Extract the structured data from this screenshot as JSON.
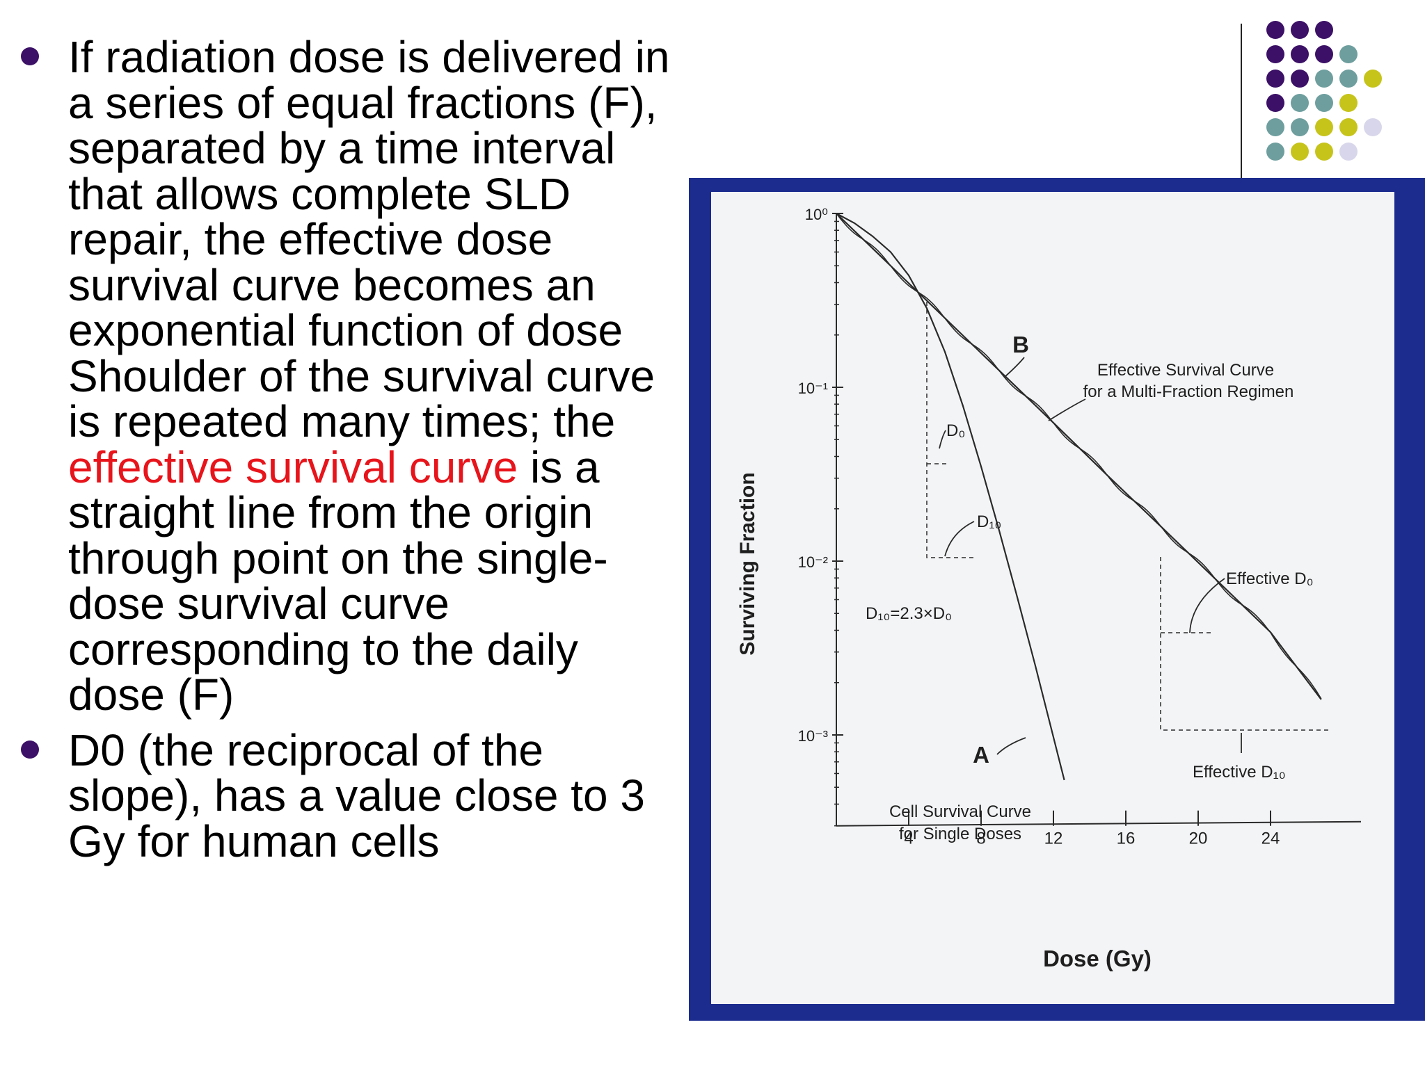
{
  "bullets": [
    {
      "before": "If radiation dose is delivered in a series of equal fractions (F), separated by a time interval that allows complete SLD repair, the effective dose survival curve becomes an exponential function of dose Shoulder of the survival curve is repeated many times; the ",
      "highlight": "effective survival curve",
      "after": " is a straight line from the origin through point on the single-dose survival curve corresponding to the daily dose (F)"
    },
    {
      "before": "D0 (the reciprocal of the slope), has a value close to 3 Gy for human cells",
      "highlight": "",
      "after": ""
    }
  ],
  "colors": {
    "panel": "#1b2b8e",
    "highlight": "#e8141b",
    "bullet": "#3b1066",
    "dots": [
      "#3b1066",
      "#6e9e9e",
      "#c6c41b",
      "#d8d6ea"
    ]
  },
  "decoration": {
    "dot_rows": [
      [
        "#3b1066",
        "#3b1066",
        "#3b1066"
      ],
      [
        "#3b1066",
        "#3b1066",
        "#3b1066",
        "#6e9e9e"
      ],
      [
        "#3b1066",
        "#3b1066",
        "#6e9e9e",
        "#6e9e9e",
        "#c6c41b"
      ],
      [
        "#3b1066",
        "#6e9e9e",
        "#6e9e9e",
        "#c6c41b"
      ],
      [
        "#6e9e9e",
        "#6e9e9e",
        "#c6c41b",
        "#c6c41b",
        "#d8d6ea"
      ],
      [
        "#6e9e9e",
        "#c6c41b",
        "#c6c41b",
        "#d8d6ea"
      ]
    ]
  },
  "chart_data": {
    "type": "line",
    "xlabel": "Dose (Gy)",
    "ylabel": "Surviving Fraction",
    "x_ticks": [
      4,
      8,
      12,
      16,
      20,
      24
    ],
    "xlim": [
      0,
      29
    ],
    "y_scale": "log",
    "y_ticks": [
      {
        "value": 1,
        "label": "10⁰"
      },
      {
        "value": 0.1,
        "label": "10⁻¹"
      },
      {
        "value": 0.01,
        "label": "10⁻²"
      },
      {
        "value": 0.001,
        "label": "10⁻³"
      }
    ],
    "ylim": [
      0.0003,
      1
    ],
    "series": [
      {
        "name": "A",
        "label_lines": [
          "Cell Survival Curve",
          "for Single Doses"
        ],
        "x": [
          0,
          1,
          2,
          3,
          4,
          5,
          6,
          7,
          8,
          9,
          10,
          11,
          12.6
        ],
        "y": [
          1,
          0.88,
          0.74,
          0.6,
          0.44,
          0.285,
          0.16,
          0.078,
          0.035,
          0.015,
          0.0062,
          0.0025,
          0.00055
        ]
      },
      {
        "name": "B",
        "label_lines": [
          "Effective Survival Curve",
          "for a Multi-Fraction Regimen"
        ],
        "x": [
          0,
          3,
          6,
          9,
          12,
          15,
          18,
          21,
          24,
          26.8
        ],
        "y": [
          1,
          0.5,
          0.25,
          0.125,
          0.0625,
          0.031,
          0.0156,
          0.0078,
          0.0039,
          0.0016
        ]
      }
    ],
    "annotations": {
      "D0": "D₀",
      "D10": "D₁₀",
      "relation": "D₁₀=2.3×D₀",
      "effective_D0": "Effective D₀",
      "effective_D10": "Effective D₁₀"
    }
  }
}
